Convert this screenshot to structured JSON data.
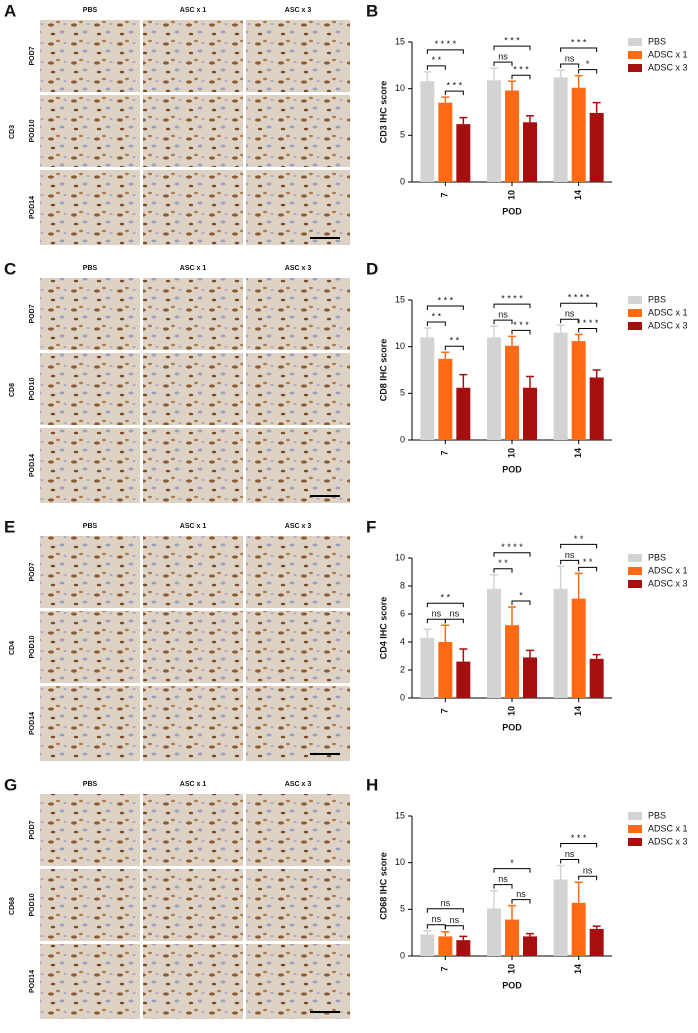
{
  "panels": [
    {
      "letter": "A",
      "marker": "CD3",
      "columns": [
        "PBS",
        "ASC x 1",
        "ASC x 3"
      ],
      "rows": [
        "POD7",
        "POD10",
        "POD14"
      ]
    },
    {
      "letter": "C",
      "marker": "CD8",
      "columns": [
        "PBS",
        "ASC x 1",
        "ASC x 3"
      ],
      "rows": [
        "POD7",
        "POD10",
        "POD14"
      ]
    },
    {
      "letter": "E",
      "marker": "CD4",
      "columns": [
        "PBS",
        "ASC x 1",
        "ASC x 3"
      ],
      "rows": [
        "POD7",
        "POD10",
        "POD14"
      ]
    },
    {
      "letter": "G",
      "marker": "CD68",
      "columns": [
        "PBS",
        "ASC x 1",
        "ASC x 3"
      ],
      "rows": [
        "POD7",
        "POD10",
        "POD14"
      ]
    }
  ],
  "chart_data": [
    {
      "type": "bar",
      "title": "B",
      "ylabel": "CD3 IHC score",
      "xlabel": "POD",
      "categories": [
        "7",
        "10",
        "14"
      ],
      "ylim": [
        0,
        15
      ],
      "yticks": [
        0,
        5,
        10,
        15
      ],
      "series": [
        {
          "name": "PBS",
          "color": "#d3d3d3",
          "values": [
            10.8,
            10.9,
            11.2
          ],
          "errors": [
            1.0,
            1.3,
            0.8
          ]
        },
        {
          "name": "ADSC x 1",
          "color": "#ff6a13",
          "values": [
            8.5,
            9.8,
            10.1
          ],
          "errors": [
            0.6,
            1.0,
            1.3
          ]
        },
        {
          "name": "ADSC x 3",
          "color": "#a50f0f",
          "values": [
            6.2,
            6.4,
            7.4
          ],
          "errors": [
            0.7,
            0.7,
            1.1
          ]
        }
      ],
      "annotations": [
        "* * * *",
        "* *",
        "* * *",
        "* * *",
        "ns",
        "* * *",
        "* * *",
        "ns",
        "*"
      ]
    },
    {
      "type": "bar",
      "title": "D",
      "ylabel": "CD8 IHC score",
      "xlabel": "POD",
      "categories": [
        "7",
        "10",
        "14"
      ],
      "ylim": [
        0,
        15
      ],
      "yticks": [
        0,
        5,
        10,
        15
      ],
      "series": [
        {
          "name": "PBS",
          "color": "#d3d3d3",
          "values": [
            11.0,
            11.0,
            11.5
          ],
          "errors": [
            1.0,
            1.2,
            0.8
          ]
        },
        {
          "name": "ADSC x 1",
          "color": "#ff6a13",
          "values": [
            8.7,
            10.1,
            10.6
          ],
          "errors": [
            0.7,
            1.0,
            0.7
          ]
        },
        {
          "name": "ADSC x 3",
          "color": "#a50f0f",
          "values": [
            5.6,
            5.6,
            6.7
          ],
          "errors": [
            1.4,
            1.2,
            0.8
          ]
        }
      ],
      "annotations": [
        "* * *",
        "* *",
        "* *",
        "* * * *",
        "ns",
        "* * *",
        "* * * *",
        "ns",
        "* * * *"
      ]
    },
    {
      "type": "bar",
      "title": "F",
      "ylabel": "CD4 IHC score",
      "xlabel": "POD",
      "categories": [
        "7",
        "10",
        "14"
      ],
      "ylim": [
        0,
        10
      ],
      "yticks": [
        0,
        2,
        4,
        6,
        8,
        10
      ],
      "series": [
        {
          "name": "PBS",
          "color": "#d3d3d3",
          "values": [
            4.3,
            7.8,
            7.8
          ],
          "errors": [
            0.6,
            1.0,
            1.6
          ]
        },
        {
          "name": "ADSC x 1",
          "color": "#ff6a13",
          "values": [
            4.0,
            5.2,
            7.1
          ],
          "errors": [
            1.2,
            1.3,
            1.8
          ]
        },
        {
          "name": "ADSC x 3",
          "color": "#a50f0f",
          "values": [
            2.6,
            2.9,
            2.8
          ],
          "errors": [
            0.9,
            0.5,
            0.3
          ]
        }
      ],
      "annotations": [
        "* *",
        "ns",
        "ns",
        "* * * *",
        "* *",
        "*",
        "* *",
        "ns",
        "* *"
      ]
    },
    {
      "type": "bar",
      "title": "H",
      "ylabel": "CD68 IHC score",
      "xlabel": "POD",
      "categories": [
        "7",
        "10",
        "14"
      ],
      "ylim": [
        0,
        15
      ],
      "yticks": [
        0,
        5,
        10,
        15
      ],
      "series": [
        {
          "name": "PBS",
          "color": "#d3d3d3",
          "values": [
            2.3,
            5.1,
            8.2
          ],
          "errors": [
            0.4,
            1.9,
            1.5
          ]
        },
        {
          "name": "ADSC x 1",
          "color": "#ff6a13",
          "values": [
            2.1,
            3.9,
            5.7
          ],
          "errors": [
            0.5,
            1.5,
            2.2
          ]
        },
        {
          "name": "ADSC x 3",
          "color": "#a50f0f",
          "values": [
            1.7,
            2.1,
            2.9
          ],
          "errors": [
            0.4,
            0.3,
            0.3
          ]
        }
      ],
      "annotations": [
        "ns",
        "ns",
        "ns",
        "*",
        "ns",
        "ns",
        "* * *",
        "ns",
        "ns"
      ]
    }
  ]
}
